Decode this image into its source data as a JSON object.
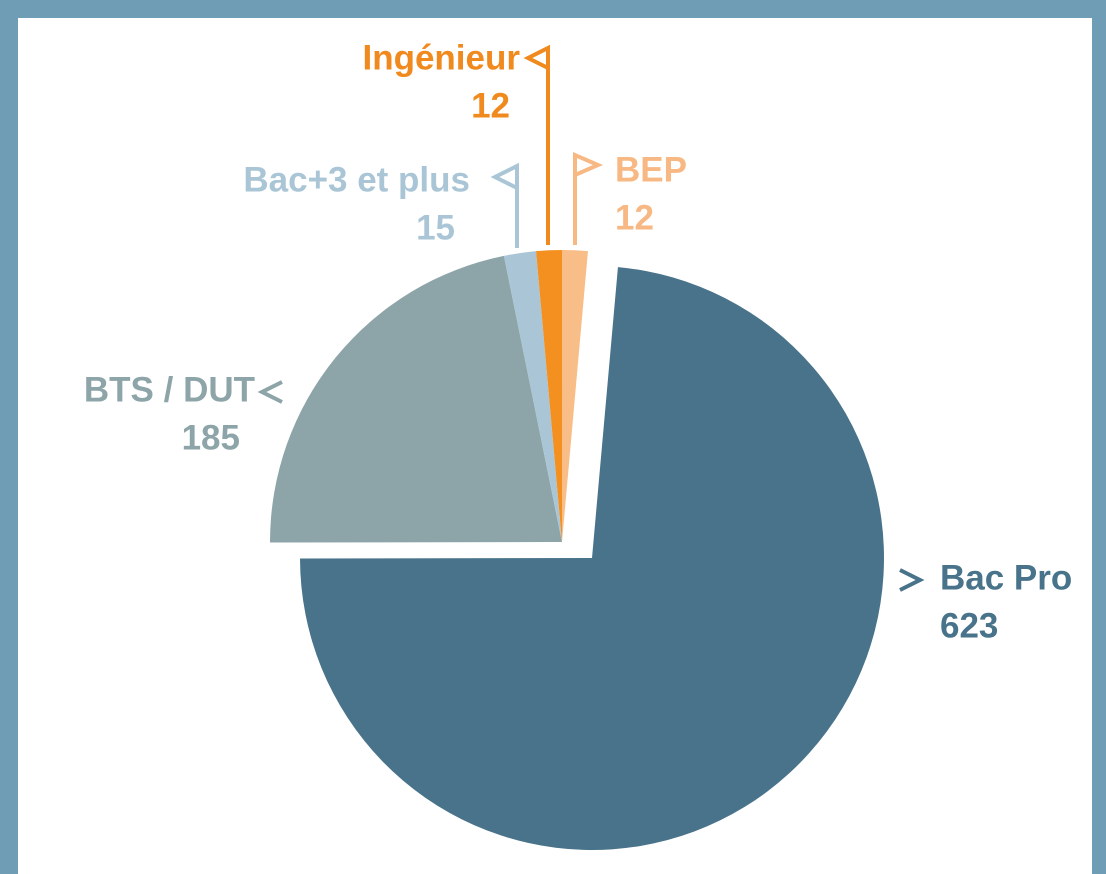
{
  "chart_data": {
    "type": "pie",
    "categories": [
      "BEP",
      "Bac Pro",
      "BTS / DUT",
      "Bac+3 et plus",
      "Ingénieur"
    ],
    "values": [
      12,
      623,
      185,
      15,
      12
    ],
    "colors": [
      "#f9bd87",
      "#48738a",
      "#8da5a8",
      "#aac6d6",
      "#f39020"
    ],
    "label_colors": [
      "#f7b884",
      "#48738a",
      "#8da5a8",
      "#aac6d6",
      "#f08a1e"
    ]
  }
}
